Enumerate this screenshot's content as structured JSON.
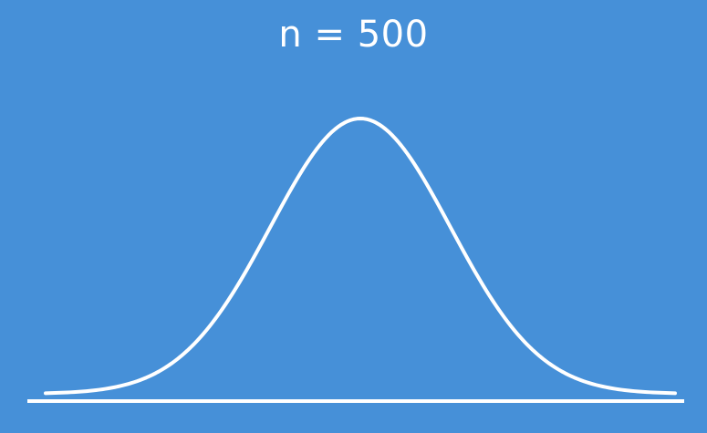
{
  "title": "n = 500",
  "colors": {
    "background": "#4690d8",
    "curve": "#ffffff",
    "baseline": "#ffffff"
  },
  "curve": {
    "shape": "normal-distribution",
    "mean": 0,
    "sd": 1,
    "x_range": [
      -3.5,
      3.5
    ]
  }
}
